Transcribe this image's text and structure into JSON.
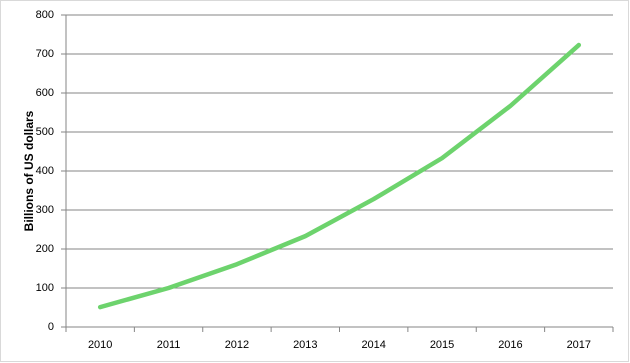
{
  "chart_data": {
    "type": "line",
    "y_label": "Billions of US dollars",
    "categories": [
      "2010",
      "2011",
      "2012",
      "2013",
      "2014",
      "2015",
      "2016",
      "2017"
    ],
    "values": [
      51,
      100,
      161,
      233,
      328,
      433,
      567,
      723
    ],
    "color": "#6dd36d",
    "ylim": [
      0,
      800
    ],
    "yticks": [
      0,
      100,
      200,
      300,
      400,
      500,
      600,
      700,
      800
    ],
    "grid": true
  }
}
